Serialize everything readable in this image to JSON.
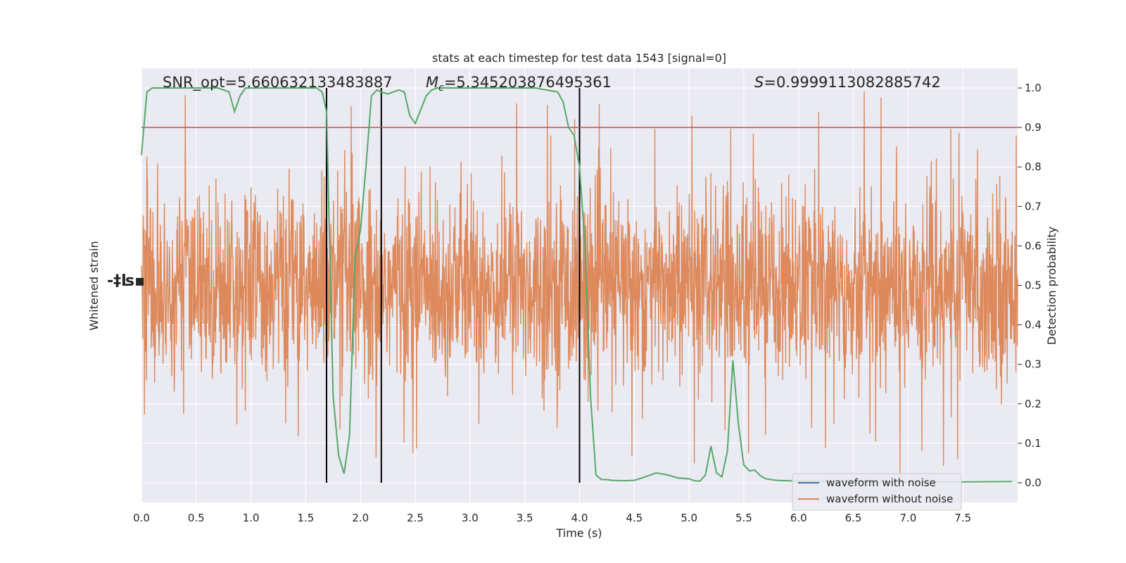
{
  "chart_data": {
    "type": "line",
    "title": "stats at each timestep for test data 1543 [signal=0]",
    "xlabel": "Time (s)",
    "ylabel_left": "Whitened strain",
    "ylabel_right": "Detection probability",
    "xlim": [
      0.0,
      8.0
    ],
    "ylim_right": [
      -0.05,
      1.05
    ],
    "x_ticks": [
      "0.0",
      "0.5",
      "1.0",
      "1.5",
      "2.0",
      "2.5",
      "3.0",
      "3.5",
      "4.0",
      "4.5",
      "5.0",
      "5.5",
      "6.0",
      "6.5",
      "7.0",
      "7.5"
    ],
    "y_ticks_right": [
      "0.0",
      "0.1",
      "0.2",
      "0.3",
      "0.4",
      "0.5",
      "0.6",
      "0.7",
      "0.8",
      "0.9",
      "1.0"
    ],
    "annotations": {
      "snr": "SNR_opt=5.660632133483887",
      "mc_symbol": "M",
      "mc_sub": "c",
      "mc_value": "=5.345203876495361",
      "s_symbol": "S",
      "s_value": "=0.9999113082885742"
    },
    "legend": {
      "placement": "lower-right",
      "entries": [
        {
          "label": "waveform with noise",
          "color": "#4c72b0"
        },
        {
          "label": "waveform without noise",
          "color": "#dd8452"
        }
      ]
    },
    "threshold": {
      "y": 0.9,
      "color": "#c44e52"
    },
    "vertical_lines": [
      1.69,
      2.19,
      4.0
    ],
    "strain_noise": {
      "color": "#dd8452",
      "center": 0.5,
      "typical_low": 0.3,
      "typical_high": 0.7,
      "extreme_low": 0.01,
      "extreme_high": 1.0
    },
    "series": [
      {
        "name": "detection probability",
        "color": "#55a868",
        "x": [
          0.0,
          0.05,
          0.1,
          0.15,
          0.2,
          0.3,
          0.4,
          0.5,
          0.6,
          0.7,
          0.8,
          0.85,
          0.9,
          0.95,
          1.0,
          1.1,
          1.2,
          1.3,
          1.4,
          1.5,
          1.6,
          1.65,
          1.69,
          1.75,
          1.8,
          1.85,
          1.9,
          1.95,
          2.0,
          2.05,
          2.1,
          2.15,
          2.19,
          2.25,
          2.3,
          2.35,
          2.4,
          2.45,
          2.5,
          2.6,
          2.65,
          2.7,
          2.75,
          2.8,
          2.9,
          3.0,
          3.1,
          3.2,
          3.3,
          3.4,
          3.5,
          3.6,
          3.7,
          3.8,
          3.85,
          3.9,
          3.95,
          4.0,
          4.05,
          4.1,
          4.15,
          4.2,
          4.25,
          4.3,
          4.4,
          4.5,
          4.6,
          4.7,
          4.8,
          4.9,
          5.0,
          5.05,
          5.1,
          5.15,
          5.2,
          5.25,
          5.3,
          5.35,
          5.4,
          5.45,
          5.5,
          5.55,
          5.6,
          5.65,
          5.7,
          5.75,
          5.8,
          5.9,
          6.0,
          6.5,
          7.0,
          7.5,
          7.95
        ],
        "values": [
          0.83,
          0.99,
          1.0,
          1.0,
          1.0,
          1.0,
          1.0,
          1.0,
          1.0,
          1.0,
          0.99,
          0.94,
          0.98,
          1.0,
          1.0,
          1.0,
          1.0,
          1.0,
          1.0,
          1.0,
          1.0,
          0.99,
          0.94,
          0.22,
          0.07,
          0.023,
          0.12,
          0.57,
          0.64,
          0.8,
          0.98,
          0.995,
          0.99,
          0.985,
          0.99,
          0.995,
          0.99,
          0.93,
          0.91,
          0.98,
          0.995,
          1.0,
          1.0,
          1.0,
          1.0,
          1.0,
          1.0,
          1.0,
          1.0,
          1.0,
          1.0,
          1.0,
          0.995,
          0.99,
          0.965,
          0.9,
          0.88,
          0.8,
          0.6,
          0.22,
          0.02,
          0.008,
          0.008,
          0.006,
          0.005,
          0.006,
          0.015,
          0.025,
          0.02,
          0.012,
          0.01,
          0.005,
          0.004,
          0.02,
          0.093,
          0.025,
          0.015,
          0.08,
          0.31,
          0.15,
          0.045,
          0.03,
          0.032,
          0.018,
          0.01,
          0.008,
          0.006,
          0.005,
          0.004,
          0.003,
          0.002,
          0.002,
          0.003
        ]
      }
    ]
  }
}
